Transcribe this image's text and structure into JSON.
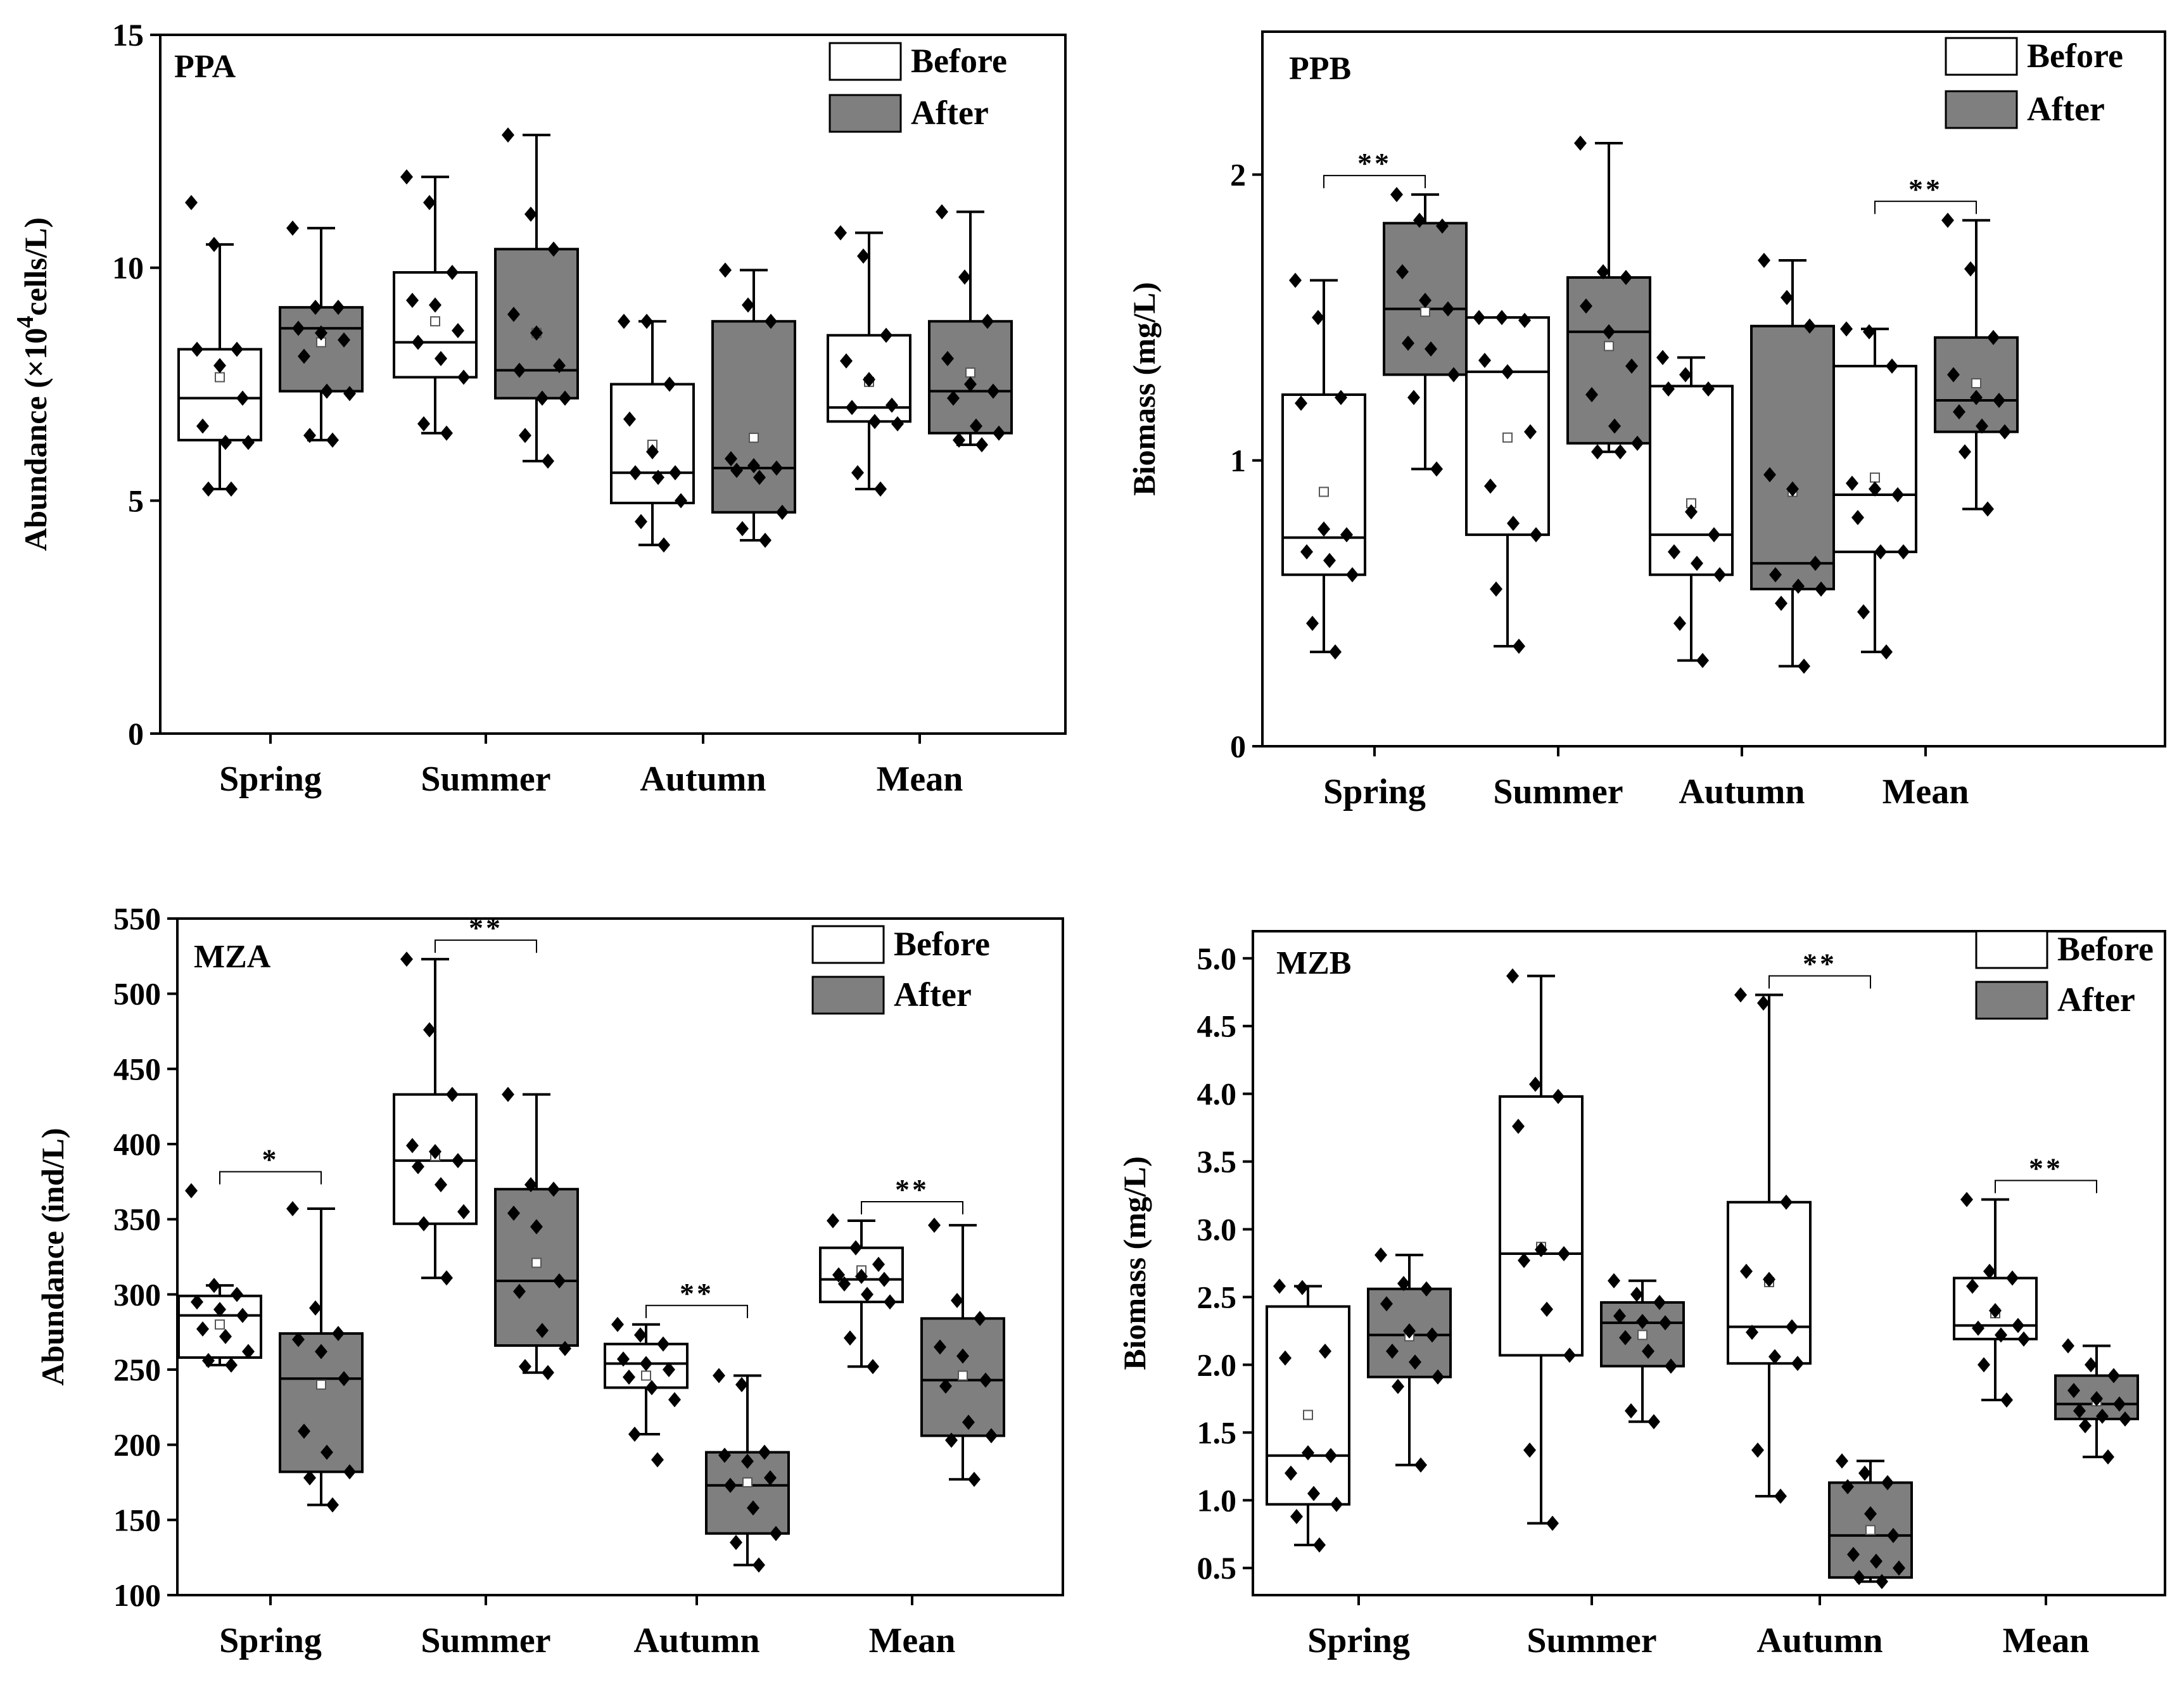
{
  "colors": {
    "before_fill": "#ffffff",
    "after_fill": "#7f7f7f",
    "axis": "#000000",
    "point": "#000000"
  },
  "chart_data": [
    {
      "type": "box",
      "title": "PPA",
      "ylabel_main": "Abundance (×10",
      "ylabel_sup": "4",
      "ylabel_rest": "cells/L)",
      "ylim": [
        0,
        15
      ],
      "yticks": [
        "0",
        "5",
        "10",
        "15"
      ],
      "yticks_v": [
        0,
        5,
        10,
        15
      ],
      "categories": [
        "Spring",
        "Summer",
        "Autumn",
        "Mean"
      ],
      "legend": [
        "Before",
        "After"
      ],
      "series": [
        {
          "name": "Before",
          "boxes": [
            {
              "min": 5.25,
              "q1": 6.3,
              "median": 7.2,
              "q3": 8.25,
              "max": 10.5,
              "mean": 7.65,
              "points": [
                11.4,
                10.5,
                8.25,
                8.25,
                7.9,
                7.2,
                6.6,
                6.25,
                6.25,
                5.25,
                5.25
              ]
            },
            {
              "min": 6.45,
              "q1": 7.65,
              "median": 8.4,
              "q3": 9.9,
              "max": 11.95,
              "mean": 8.85,
              "points": [
                11.95,
                11.4,
                9.9,
                9.3,
                9.2,
                8.65,
                8.4,
                8.05,
                7.65,
                6.65,
                6.45
              ]
            },
            {
              "min": 4.05,
              "q1": 4.95,
              "median": 5.6,
              "q3": 7.5,
              "max": 8.85,
              "mean": 6.2,
              "points": [
                8.85,
                8.85,
                7.5,
                6.75,
                6.05,
                5.6,
                5.6,
                5.5,
                5.0,
                4.55,
                4.05
              ]
            },
            {
              "min": 5.25,
              "q1": 6.7,
              "median": 7.0,
              "q3": 8.55,
              "max": 10.75,
              "mean": 7.55,
              "points": [
                10.75,
                10.25,
                8.55,
                8.0,
                7.6,
                7.05,
                7.0,
                6.7,
                6.65,
                5.6,
                5.25
              ]
            }
          ]
        },
        {
          "name": "After",
          "boxes": [
            {
              "min": 6.3,
              "q1": 7.35,
              "median": 8.7,
              "q3": 9.15,
              "max": 10.85,
              "mean": 8.4,
              "points": [
                10.85,
                9.15,
                9.15,
                8.7,
                8.6,
                8.45,
                8.1,
                7.35,
                7.3,
                6.4,
                6.3
              ]
            },
            {
              "min": 5.85,
              "q1": 7.2,
              "median": 7.8,
              "q3": 10.4,
              "max": 12.85,
              "mean": 8.6,
              "points": [
                12.85,
                11.15,
                10.4,
                9.0,
                8.6,
                7.9,
                7.8,
                7.2,
                7.2,
                6.4,
                5.85
              ]
            },
            {
              "min": 4.15,
              "q1": 4.75,
              "median": 5.7,
              "q3": 8.85,
              "max": 9.95,
              "mean": 6.35,
              "points": [
                9.95,
                9.2,
                8.85,
                5.9,
                5.75,
                5.7,
                5.65,
                5.5,
                4.75,
                4.4,
                4.15
              ]
            },
            {
              "min": 6.2,
              "q1": 6.45,
              "median": 7.35,
              "q3": 8.85,
              "max": 11.2,
              "mean": 7.75,
              "points": [
                11.2,
                9.8,
                8.85,
                8.05,
                7.5,
                7.35,
                7.2,
                6.6,
                6.45,
                6.3,
                6.2
              ]
            }
          ]
        }
      ],
      "significance": []
    },
    {
      "type": "box",
      "title": "PPB",
      "ylabel_main": "Biomass (mg/L)",
      "ylim": [
        0,
        2.5
      ],
      "yticks": [
        "0",
        "1",
        "2"
      ],
      "yticks_v": [
        0,
        1,
        2
      ],
      "categories": [
        "Spring",
        "Summer",
        "Autumn",
        "Mean"
      ],
      "legend": [
        "Before",
        "After"
      ],
      "series": [
        {
          "name": "Before",
          "boxes": [
            {
              "min": 0.33,
              "q1": 0.6,
              "median": 0.73,
              "q3": 1.23,
              "max": 1.63,
              "mean": 0.89,
              "points": [
                1.63,
                1.5,
                1.22,
                1.2,
                0.76,
                0.74,
                0.68,
                0.65,
                0.6,
                0.43,
                0.33
              ]
            },
            {
              "min": 0.35,
              "q1": 0.74,
              "median": 1.31,
              "q3": 1.5,
              "max": 1.5,
              "mean": 1.08,
              "points": [
                1.5,
                1.5,
                1.49,
                1.35,
                1.31,
                1.1,
                0.91,
                0.78,
                0.74,
                0.55,
                0.35
              ]
            },
            {
              "min": 0.3,
              "q1": 0.6,
              "median": 0.74,
              "q3": 1.26,
              "max": 1.36,
              "mean": 0.85,
              "points": [
                1.36,
                1.3,
                1.25,
                1.25,
                0.82,
                0.74,
                0.68,
                0.64,
                0.6,
                0.43,
                0.3
              ]
            },
            {
              "min": 0.33,
              "q1": 0.68,
              "median": 0.88,
              "q3": 1.33,
              "max": 1.46,
              "mean": 0.94,
              "points": [
                1.46,
                1.45,
                1.33,
                0.92,
                0.9,
                0.88,
                0.8,
                0.68,
                0.68,
                0.47,
                0.33
              ]
            }
          ]
        },
        {
          "name": "After",
          "boxes": [
            {
              "min": 0.97,
              "q1": 1.3,
              "median": 1.53,
              "q3": 1.83,
              "max": 1.93,
              "mean": 1.52,
              "points": [
                1.93,
                1.84,
                1.82,
                1.66,
                1.56,
                1.53,
                1.41,
                1.39,
                1.3,
                1.22,
                0.97
              ]
            },
            {
              "min": 1.03,
              "q1": 1.06,
              "median": 1.45,
              "q3": 1.64,
              "max": 2.11,
              "mean": 1.4,
              "points": [
                2.11,
                1.66,
                1.64,
                1.54,
                1.45,
                1.33,
                1.23,
                1.12,
                1.06,
                1.03,
                1.03
              ]
            },
            {
              "min": 0.28,
              "q1": 0.55,
              "median": 0.64,
              "q3": 1.47,
              "max": 1.7,
              "mean": 0.89,
              "points": [
                1.7,
                1.57,
                1.47,
                0.95,
                0.9,
                0.64,
                0.6,
                0.56,
                0.55,
                0.5,
                0.28
              ]
            },
            {
              "min": 0.83,
              "q1": 1.1,
              "median": 1.21,
              "q3": 1.43,
              "max": 1.84,
              "mean": 1.27,
              "points": [
                1.84,
                1.67,
                1.43,
                1.3,
                1.22,
                1.21,
                1.17,
                1.12,
                1.1,
                1.03,
                0.83
              ]
            }
          ]
        }
      ],
      "significance": [
        {
          "category": 0,
          "label": "**"
        },
        {
          "category": 3,
          "label": "**"
        }
      ]
    },
    {
      "type": "box",
      "title": "MZA",
      "ylabel_main": "Abundance (ind/L)",
      "ylim": [
        100,
        550
      ],
      "yticks": [
        "100",
        "150",
        "200",
        "250",
        "300",
        "350",
        "400",
        "450",
        "500",
        "550"
      ],
      "yticks_v": [
        100,
        150,
        200,
        250,
        300,
        350,
        400,
        450,
        500,
        550
      ],
      "categories": [
        "Spring",
        "Summer",
        "Autumn",
        "Mean"
      ],
      "legend": [
        "Before",
        "After"
      ],
      "series": [
        {
          "name": "Before",
          "boxes": [
            {
              "min": 253,
              "q1": 258,
              "median": 286,
              "q3": 299,
              "max": 306,
              "mean": 280,
              "points": [
                369,
                306,
                300,
                295,
                290,
                286,
                277,
                272,
                262,
                256,
                253
              ]
            },
            {
              "min": 311,
              "q1": 347,
              "median": 389,
              "q3": 433,
              "max": 523,
              "mean": 392,
              "points": [
                523,
                476,
                433,
                399,
                395,
                389,
                385,
                373,
                355,
                347,
                311
              ]
            },
            {
              "min": 207,
              "q1": 238,
              "median": 254,
              "q3": 267,
              "max": 280,
              "mean": 246,
              "points": [
                280,
                273,
                267,
                257,
                254,
                250,
                245,
                238,
                230,
                207,
                190
              ]
            },
            {
              "min": 252,
              "q1": 295,
              "median": 310,
              "q3": 331,
              "max": 349,
              "mean": 316,
              "points": [
                349,
                331,
                320,
                313,
                312,
                310,
                307,
                300,
                295,
                271,
                252
              ]
            }
          ]
        },
        {
          "name": "After",
          "boxes": [
            {
              "min": 160,
              "q1": 182,
              "median": 244,
              "q3": 274,
              "max": 357,
              "mean": 240,
              "points": [
                357,
                291,
                274,
                270,
                262,
                244,
                209,
                195,
                182,
                178,
                160
              ]
            },
            {
              "min": 248,
              "q1": 266,
              "median": 309,
              "q3": 370,
              "max": 433,
              "mean": 321,
              "points": [
                433,
                373,
                370,
                354,
                345,
                309,
                302,
                276,
                264,
                252,
                248
              ]
            },
            {
              "min": 120,
              "q1": 141,
              "median": 173,
              "q3": 195,
              "max": 246,
              "mean": 175,
              "points": [
                246,
                240,
                195,
                193,
                189,
                178,
                173,
                158,
                141,
                135,
                120
              ]
            },
            {
              "min": 177,
              "q1": 206,
              "median": 243,
              "q3": 284,
              "max": 346,
              "mean": 246,
              "points": [
                346,
                296,
                284,
                265,
                259,
                243,
                239,
                215,
                206,
                203,
                177
              ]
            }
          ]
        }
      ],
      "significance": [
        {
          "category": 0,
          "label": "*"
        },
        {
          "category": 1,
          "label": "**"
        },
        {
          "category": 2,
          "label": "**"
        },
        {
          "category": 3,
          "label": "**"
        }
      ]
    },
    {
      "type": "box",
      "title": "MZB",
      "ylabel_main": "Biomass (mg/L)",
      "ylim": [
        0.3,
        5.2
      ],
      "yticks": [
        "0.5",
        "1.0",
        "1.5",
        "2.0",
        "2.5",
        "3.0",
        "3.5",
        "4.0",
        "4.5",
        "5.0"
      ],
      "yticks_v": [
        0.5,
        1.0,
        1.5,
        2.0,
        2.5,
        3.0,
        3.5,
        4.0,
        4.5,
        5.0
      ],
      "categories": [
        "Spring",
        "Summer",
        "Autumn",
        "Mean"
      ],
      "legend": [
        "Before",
        "After"
      ],
      "series": [
        {
          "name": "Before",
          "boxes": [
            {
              "min": 0.67,
              "q1": 0.97,
              "median": 1.33,
              "q3": 2.43,
              "max": 2.58,
              "mean": 1.63,
              "points": [
                2.58,
                2.57,
                2.1,
                2.05,
                1.35,
                1.33,
                1.2,
                1.05,
                0.97,
                0.88,
                0.67
              ]
            },
            {
              "min": 0.83,
              "q1": 2.07,
              "median": 2.82,
              "q3": 3.98,
              "max": 4.87,
              "mean": 2.87,
              "points": [
                4.87,
                4.07,
                3.98,
                3.76,
                2.85,
                2.82,
                2.77,
                2.41,
                2.07,
                1.37,
                0.83
              ]
            },
            {
              "min": 1.03,
              "q1": 2.01,
              "median": 2.28,
              "q3": 3.2,
              "max": 4.73,
              "mean": 2.61,
              "points": [
                4.73,
                4.67,
                3.2,
                2.69,
                2.63,
                2.28,
                2.24,
                2.06,
                2.01,
                1.37,
                1.03
              ]
            },
            {
              "min": 1.74,
              "q1": 2.19,
              "median": 2.29,
              "q3": 2.64,
              "max": 3.22,
              "mean": 2.38,
              "points": [
                3.22,
                2.69,
                2.64,
                2.58,
                2.4,
                2.29,
                2.27,
                2.22,
                2.19,
                2.0,
                1.74
              ]
            }
          ]
        },
        {
          "name": "After",
          "boxes": [
            {
              "min": 1.26,
              "q1": 1.91,
              "median": 2.22,
              "q3": 2.56,
              "max": 2.81,
              "mean": 2.21,
              "points": [
                2.81,
                2.6,
                2.56,
                2.45,
                2.25,
                2.22,
                2.1,
                2.02,
                1.91,
                1.84,
                1.26
              ]
            },
            {
              "min": 1.58,
              "q1": 1.99,
              "median": 2.31,
              "q3": 2.46,
              "max": 2.62,
              "mean": 2.22,
              "points": [
                2.62,
                2.52,
                2.46,
                2.36,
                2.32,
                2.31,
                2.2,
                2.1,
                1.99,
                1.66,
                1.58
              ]
            },
            {
              "min": 0.4,
              "q1": 0.43,
              "median": 0.74,
              "q3": 1.13,
              "max": 1.29,
              "mean": 0.78,
              "points": [
                1.29,
                1.2,
                1.13,
                1.1,
                0.9,
                0.74,
                0.6,
                0.55,
                0.5,
                0.43,
                0.4
              ]
            },
            {
              "min": 1.32,
              "q1": 1.6,
              "median": 1.71,
              "q3": 1.92,
              "max": 2.14,
              "mean": 1.73,
              "points": [
                2.14,
                2.0,
                1.92,
                1.81,
                1.75,
                1.71,
                1.66,
                1.62,
                1.6,
                1.55,
                1.32
              ]
            }
          ]
        }
      ],
      "significance": [
        {
          "category": 2,
          "label": "**"
        },
        {
          "category": 3,
          "label": "**"
        }
      ]
    }
  ]
}
